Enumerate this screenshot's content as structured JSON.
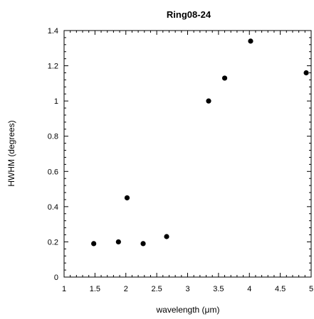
{
  "chart_data": {
    "type": "scatter",
    "title": "Ring08-24",
    "xlabel": "wavelength (μm)",
    "ylabel": "HWHM (degrees)",
    "xlim": [
      1,
      5
    ],
    "ylim": [
      0,
      1.4
    ],
    "x_ticks": [
      1,
      1.5,
      2,
      2.5,
      3,
      3.5,
      4,
      4.5,
      5
    ],
    "x_tick_labels": [
      "1",
      "1.5",
      "2",
      "2.5",
      "3",
      "3.5",
      "4",
      "4.5",
      "5"
    ],
    "y_ticks": [
      0,
      0.2,
      0.4,
      0.6,
      0.8,
      1.0,
      1.2,
      1.4
    ],
    "y_tick_labels": [
      "0",
      "0.2",
      "0.4",
      "0.6",
      "0.8",
      "1",
      "1.2",
      "1.4"
    ],
    "grid": false,
    "marker_color": "#000000",
    "series": [
      {
        "x": [
          1.48,
          1.88,
          2.02,
          2.28,
          2.66,
          3.34,
          3.6,
          4.02,
          4.92
        ],
        "y": [
          0.19,
          0.2,
          0.45,
          0.19,
          0.23,
          1.0,
          1.13,
          1.34,
          1.16
        ]
      }
    ]
  }
}
